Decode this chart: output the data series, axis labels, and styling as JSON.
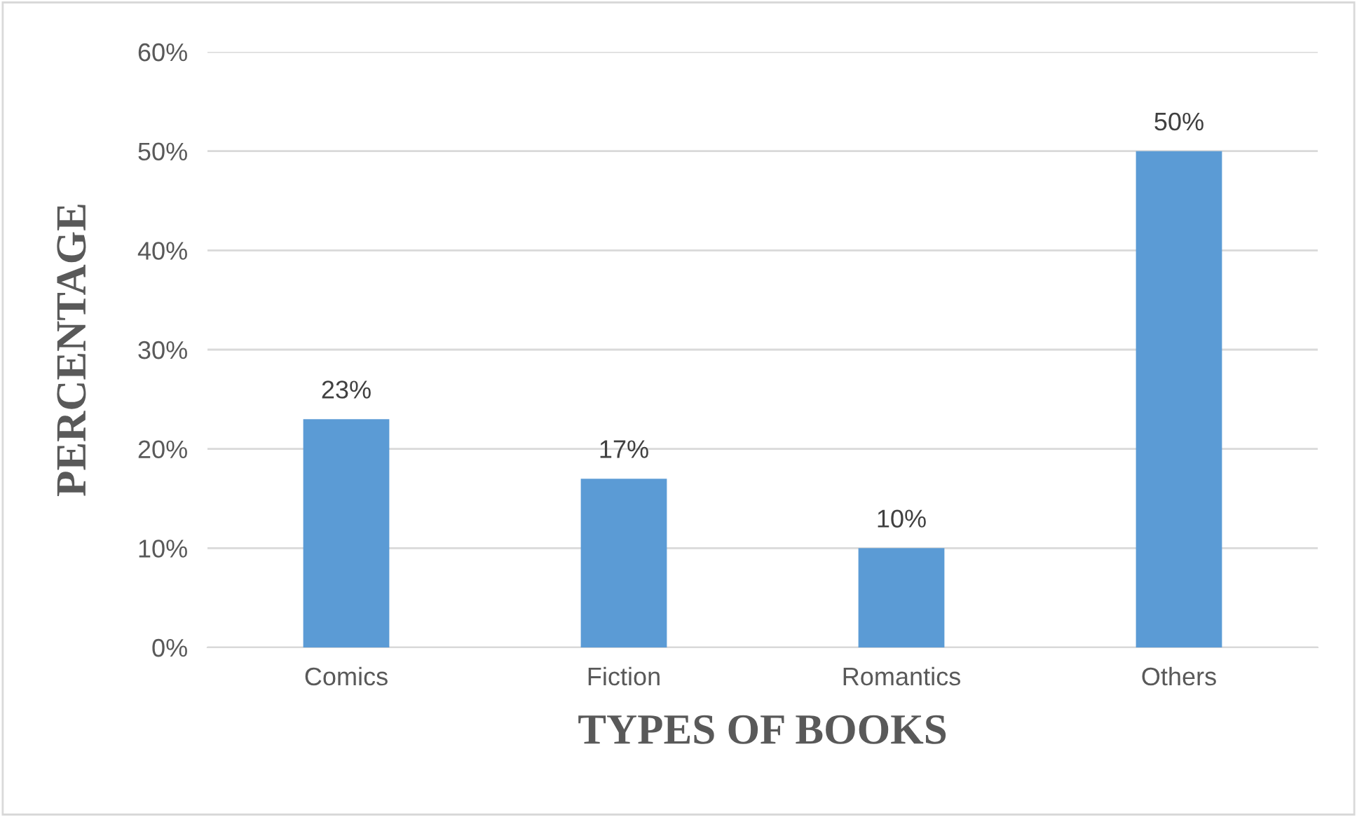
{
  "chart_data": {
    "type": "bar",
    "xlabel": "TYPES OF BOOKS",
    "ylabel": "PERCENTAGE",
    "categories": [
      "Comics",
      "Fiction",
      "Romantics",
      "Others"
    ],
    "values": [
      23,
      17,
      10,
      50
    ],
    "value_labels": [
      "23%",
      "17%",
      "10%",
      "50%"
    ],
    "color": "#5b9bd5",
    "ylim": [
      0,
      60
    ],
    "yticks": [
      {
        "value": 0,
        "label": "0%"
      },
      {
        "value": 10,
        "label": "10%"
      },
      {
        "value": 20,
        "label": "20%"
      },
      {
        "value": 30,
        "label": "30%"
      },
      {
        "value": 40,
        "label": "40%"
      },
      {
        "value": 50,
        "label": "50%"
      },
      {
        "value": 60,
        "label": "60%"
      }
    ],
    "grid": "y",
    "legend": false
  }
}
